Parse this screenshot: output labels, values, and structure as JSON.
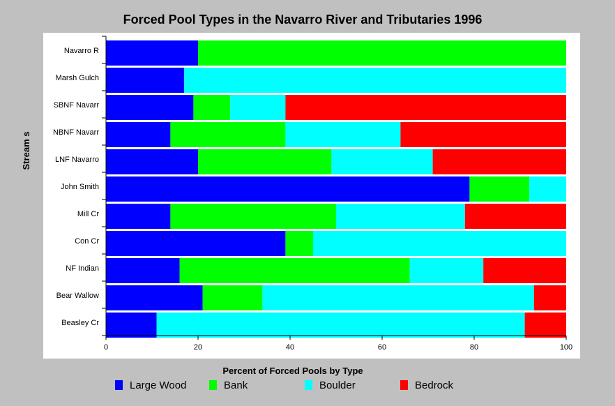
{
  "chart_data": {
    "type": "bar",
    "orientation": "horizontal",
    "stacked": true,
    "title": "Forced Pool Types in the Navarro River and Tributaries 1996",
    "xlabel": "Percent of Forced Pools by Type",
    "ylabel": "Stream s",
    "xlim": [
      0,
      100
    ],
    "xticks": [
      "0",
      "20",
      "40",
      "60",
      "80",
      "100"
    ],
    "grid": false,
    "legend_position": "bottom",
    "categories": [
      "Navarro R",
      "Marsh Gulch",
      "SBNF Navarr",
      "NBNF Navarr",
      "LNF Navarro",
      "John Smith",
      "Mill Cr",
      "Con Cr",
      "NF Indian",
      "Bear Wallow",
      "Beasley Cr"
    ],
    "series": [
      {
        "name": "Large Wood",
        "color": "#0000ff",
        "values": [
          20,
          17,
          19,
          14,
          20,
          79,
          14,
          39,
          16,
          21,
          11
        ]
      },
      {
        "name": "Bank",
        "color": "#00ff00",
        "values": [
          80,
          0,
          8,
          25,
          29,
          13,
          36,
          6,
          50,
          13,
          0
        ]
      },
      {
        "name": "Boulder",
        "color": "#00ffff",
        "values": [
          0,
          83,
          12,
          25,
          22,
          8,
          28,
          55,
          16,
          59,
          80
        ]
      },
      {
        "name": "Bedrock",
        "color": "#ff0000",
        "values": [
          0,
          0,
          61,
          36,
          29,
          0,
          22,
          0,
          18,
          7,
          9
        ]
      }
    ]
  }
}
